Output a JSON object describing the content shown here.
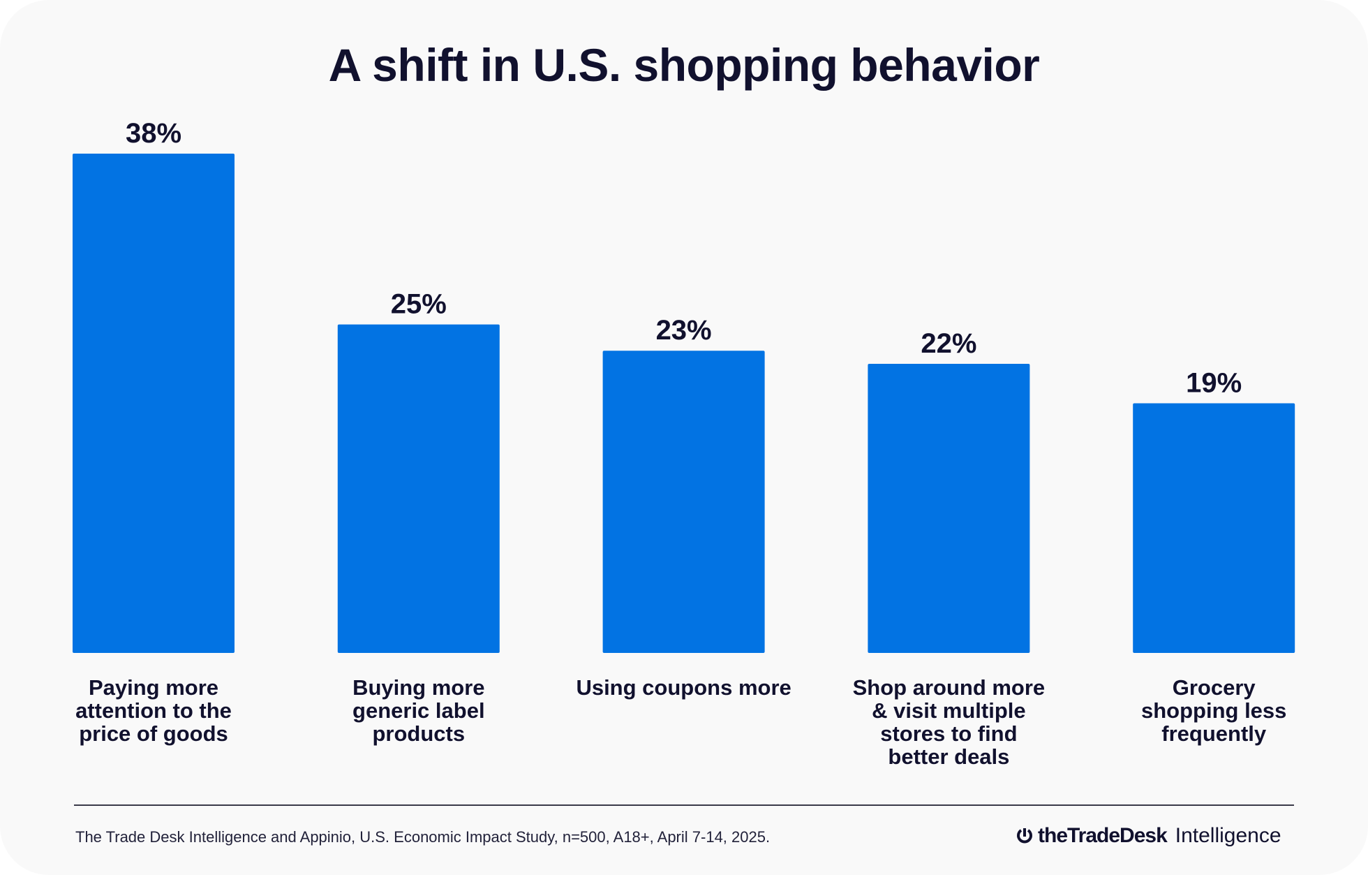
{
  "chart_data": {
    "type": "bar",
    "title": "A shift in U.S. shopping behavior",
    "categories": [
      [
        "Paying more",
        "attention to the",
        "price of goods"
      ],
      [
        "Buying more",
        "generic label",
        "products"
      ],
      [
        "Using coupons more"
      ],
      [
        "Shop around more",
        "& visit multiple",
        "stores to find",
        "better deals"
      ],
      [
        "Grocery",
        "shopping less",
        "frequently"
      ]
    ],
    "values": [
      38,
      25,
      23,
      22,
      19
    ],
    "value_labels": [
      "38%",
      "25%",
      "23%",
      "22%",
      "19%"
    ],
    "xlabel": "",
    "ylabel": "",
    "ylim": [
      0,
      38
    ],
    "grid": false,
    "bar_color": "#0273e3"
  },
  "footer": {
    "source": "The Trade Desk Intelligence and Appinio, U.S. Economic Impact Study, n=500, A18+, April 7-14, 2025.",
    "logo_brand": "theTradeDesk",
    "logo_sub": "Intelligence"
  }
}
